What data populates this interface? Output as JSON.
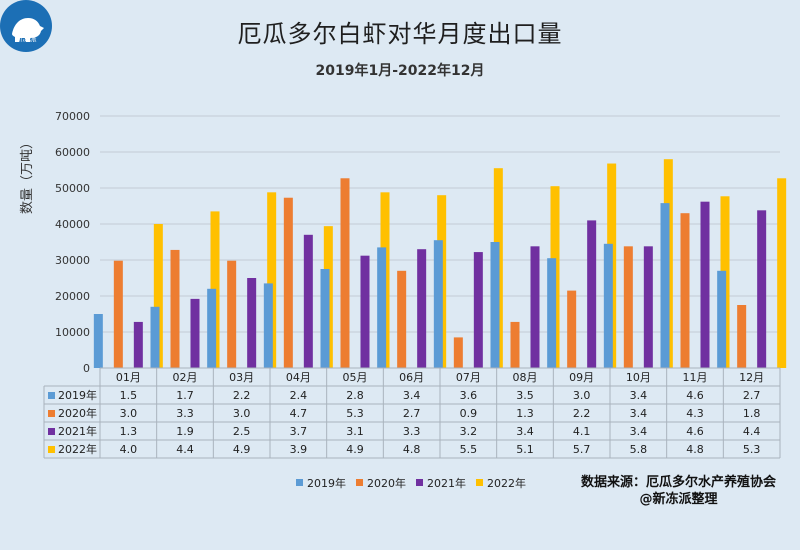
{
  "logo": {
    "text": "新冻派"
  },
  "header": {
    "title": "厄瓜多尔白虾对华月度出口量",
    "subtitle": "2019年1月-2022年12月"
  },
  "source": {
    "line1": "数据来源：厄瓜多尔水产养殖协会",
    "line2": "@新冻派整理"
  },
  "chart_data": {
    "type": "bar",
    "ylabel": "数量（万吨）",
    "ylim": [
      0,
      70000
    ],
    "yticks": [
      "0",
      "10000",
      "20000",
      "30000",
      "40000",
      "50000",
      "60000",
      "70000"
    ],
    "grid": true,
    "legend_position": "bottom",
    "categories": [
      "01月",
      "02月",
      "03月",
      "04月",
      "05月",
      "06月",
      "07月",
      "08月",
      "09月",
      "10月",
      "11月",
      "12月"
    ],
    "series": [
      {
        "name": "2019年",
        "color": "#5b9bd5",
        "values": [
          15000,
          17000,
          22000,
          23500,
          27500,
          33500,
          35500,
          35000,
          30500,
          34500,
          45800,
          27000
        ],
        "table": [
          "1.5",
          "1.7",
          "2.2",
          "2.4",
          "2.8",
          "3.4",
          "3.6",
          "3.5",
          "3.0",
          "3.4",
          "4.6",
          "2.7"
        ]
      },
      {
        "name": "2020年",
        "color": "#ed7d31",
        "values": [
          29800,
          32800,
          29800,
          47300,
          52700,
          27000,
          8500,
          12800,
          21500,
          33800,
          43000,
          17500
        ],
        "table": [
          "3.0",
          "3.3",
          "3.0",
          "4.7",
          "5.3",
          "2.7",
          "0.9",
          "1.3",
          "2.2",
          "3.4",
          "4.3",
          "1.8"
        ]
      },
      {
        "name": "2021年",
        "color": "#7030a0",
        "values": [
          12800,
          19200,
          25000,
          37000,
          31200,
          33000,
          32200,
          33800,
          41000,
          33800,
          46200,
          43800
        ],
        "table": [
          "1.3",
          "1.9",
          "2.5",
          "3.7",
          "3.1",
          "3.3",
          "3.2",
          "3.4",
          "4.1",
          "3.4",
          "4.6",
          "4.4"
        ]
      },
      {
        "name": "2022年",
        "color": "#ffc000",
        "values": [
          40000,
          43500,
          48800,
          39400,
          48800,
          48000,
          55500,
          50500,
          56800,
          58000,
          47700,
          52700
        ],
        "table": [
          "4.0",
          "4.4",
          "4.9",
          "3.9",
          "4.9",
          "4.8",
          "5.5",
          "5.1",
          "5.7",
          "5.8",
          "4.8",
          "5.3"
        ]
      }
    ]
  }
}
